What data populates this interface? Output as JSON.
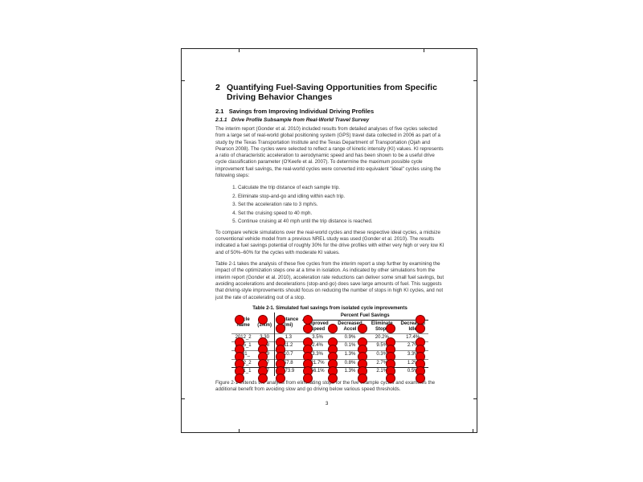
{
  "heading": {
    "number": "2",
    "title": "Quantifying Fuel-Saving Opportunities from Specific Driving Behavior Changes"
  },
  "section": {
    "number": "2.1",
    "title": "Savings from Improving Individual Driving Profiles"
  },
  "subsection": {
    "number": "2.1.1",
    "title": "Drive Profile Subsample from Real-World Travel Survey"
  },
  "paragraphs": [
    "The interim report (Gonder et al. 2010) included results from detailed analyses of five cycles selected from a large set of real-world global positioning system (GPS) travel data collected in 2006 as part of a study by the Texas Transportation Institute and the Texas Department of Transportation (Ojah and Pearson 2008). The cycles were selected to reflect a range of kinetic intensity (KI) values. KI represents a ratio of characteristic acceleration to aerodynamic speed and has been shown to be a useful drive cycle classification parameter (O'Keefe et al. 2007). To determine the maximum possible cycle improvement fuel savings, the real-world cycles were converted into equivalent \"ideal\" cycles using the following steps:"
  ],
  "steps": [
    "Calculate the trip distance of each sample trip.",
    "Eliminate stop-and-go and idling within each trip.",
    "Set the acceleration rate to 3 mph/s.",
    "Set the cruising speed to 40 mph.",
    "Continue cruising at 40 mph until the trip distance is reached."
  ],
  "paragraphs_after": [
    "To compare vehicle simulations over the real-world cycles and these respective ideal cycles, a midsize conventional vehicle model from a previous NREL study was used (Gonder et al. 2010). The results indicated a fuel savings potential of roughly 30% for the drive profiles with either very high or very low KI and of 50%–60% for the cycles with moderate KI values.",
    "Table 2-1 takes the analysis of these five cycles from the interim report a step further by examining the impact of the optimization steps one at a time in isolation. As indicated by other simulations from the interim report (Gonder et al. 2010), acceleration rate reductions can deliver some small fuel savings, but avoiding accelerations and decelerations (stop-and-go) does save large amounts of fuel. This suggests that driving-style improvements should focus on reducing the number of stops in high KI cycles, and not just the rate of accelerating out of a stop."
  ],
  "table": {
    "caption": "Table 2-1. Simulated fuel savings from isolated cycle improvements",
    "headers": {
      "cycle": "Cycle Name",
      "ki": "KI (1/km)",
      "distance": "Distance (mi)",
      "group": "Percent Fuel Savings",
      "speed": "Improved Speed",
      "accel": "Decreased Accel",
      "stops": "Eliminate Stops",
      "idle": "Decreased Idle"
    },
    "rows": [
      [
        "2012_2",
        "3.30",
        "1.3",
        "3.5%",
        "0.9%",
        "20.2%",
        "17.4%"
      ],
      [
        "2145_1",
        "0.68",
        "11.2",
        "2.4%",
        "0.1%",
        "9.5%",
        "2.7%"
      ],
      [
        "1231_",
        "0.59",
        "10.7",
        "3.3%",
        "1.3%",
        "0.3%",
        "3.3%"
      ],
      [
        "2092_2",
        "0.17",
        "57.8",
        "21.7%",
        "0.8%",
        "2.7%",
        "1.2%"
      ],
      [
        "1171_1",
        "0.07",
        "173.9",
        "56.1%",
        "1.3%",
        "2.1%",
        "0.5%"
      ]
    ]
  },
  "closing": "Figure 2-1 extends the analysis from eliminating stops for the five example cycles and examines the additional benefit from avoiding slow and go driving below various speed thresholds.",
  "page_number": "3",
  "marker_color": "#ee0000"
}
